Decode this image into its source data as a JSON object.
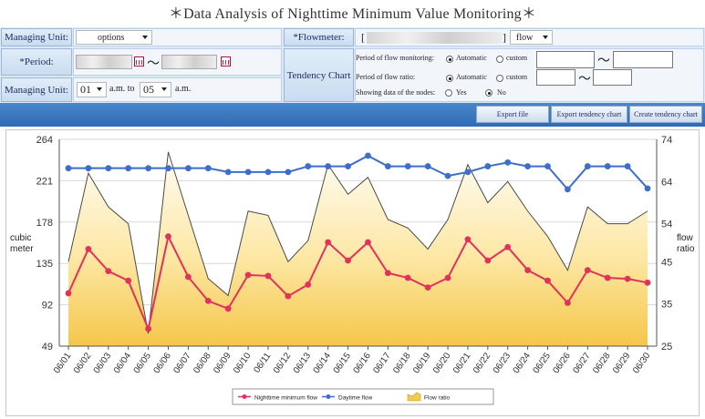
{
  "title": "＊Data Analysis of Nighttime Minimum Value Monitoring＊",
  "form": {
    "managing_unit_label": "Managing Unit:",
    "managing_unit_value": "options",
    "flowmeter_label": "*Flowmeter:",
    "flowmeter_prefix": "[",
    "flowmeter_suffix": "]",
    "flowmeter_type": "flow",
    "period_label": "*Period:",
    "period_tilde": "～",
    "tendency_label": "Tendency Chart",
    "time_label": "Managing Unit:",
    "time_from": "01",
    "time_from_unit": "a.m. to",
    "time_to": "05",
    "time_to_unit": "a.m.",
    "flow_monitoring_label": "Period of flow monitoring:",
    "flow_ratio_label": "Period of flow ratio:",
    "automatic": "Automatic",
    "custom": "custom",
    "nodes_label": "Showing data of the nodes:",
    "yes": "Yes",
    "no": "No",
    "tilde": "～"
  },
  "toolbar": {
    "export_file": "Export file",
    "export_tendency": "Export tendency chart",
    "create_tendency": "Create tendency chart"
  },
  "chart_data": {
    "type": "line",
    "categories": [
      "06/01",
      "06/02",
      "06/03",
      "06/04",
      "06/05",
      "06/06",
      "06/07",
      "06/08",
      "06/09",
      "06/10",
      "06/11",
      "06/12",
      "06/13",
      "06/14",
      "06/15",
      "06/16",
      "06/17",
      "06/18",
      "06/19",
      "06/20",
      "06/21",
      "06/22",
      "06/23",
      "06/24",
      "06/25",
      "06/26",
      "06/27",
      "06/28",
      "06/29",
      "06/30"
    ],
    "ylabel_left": "cubic meter",
    "ylabel_right": "flow ratio",
    "left_ticks": [
      264,
      221,
      178,
      135,
      92,
      49
    ],
    "right_ticks": [
      74,
      64,
      54,
      45,
      35,
      25
    ],
    "ylim_left": [
      49,
      264
    ],
    "ylim_right": [
      25,
      74
    ],
    "series": [
      {
        "name": "Nighttime minimum flow",
        "axis": "left",
        "color": "#e0325a",
        "values": [
          104,
          150,
          127,
          117,
          67,
          163,
          121,
          96,
          88,
          123,
          122,
          101,
          113,
          157,
          138,
          157,
          125,
          120,
          110,
          120,
          160,
          138,
          152,
          128,
          117,
          94,
          128,
          120,
          119,
          115
        ]
      },
      {
        "name": "Daytime flow",
        "axis": "left",
        "color": "#3d6ec9",
        "values": [
          234,
          234,
          234,
          234,
          234,
          234,
          234,
          234,
          230,
          230,
          230,
          230,
          236,
          236,
          236,
          247,
          236,
          236,
          236,
          226,
          230,
          236,
          240,
          236,
          236,
          212,
          236,
          236,
          236,
          213
        ]
      },
      {
        "name": "Flow ratio",
        "axis": "right",
        "color": "#f3c94e",
        "values": [
          45,
          66,
          58,
          54,
          28,
          71,
          56,
          41,
          37,
          57,
          56,
          45,
          50,
          68,
          61,
          65,
          55,
          53,
          48,
          55,
          68,
          59,
          64,
          57,
          51,
          43,
          58,
          54,
          54,
          57
        ]
      }
    ],
    "legend_position": "bottom-center",
    "grid": true
  }
}
